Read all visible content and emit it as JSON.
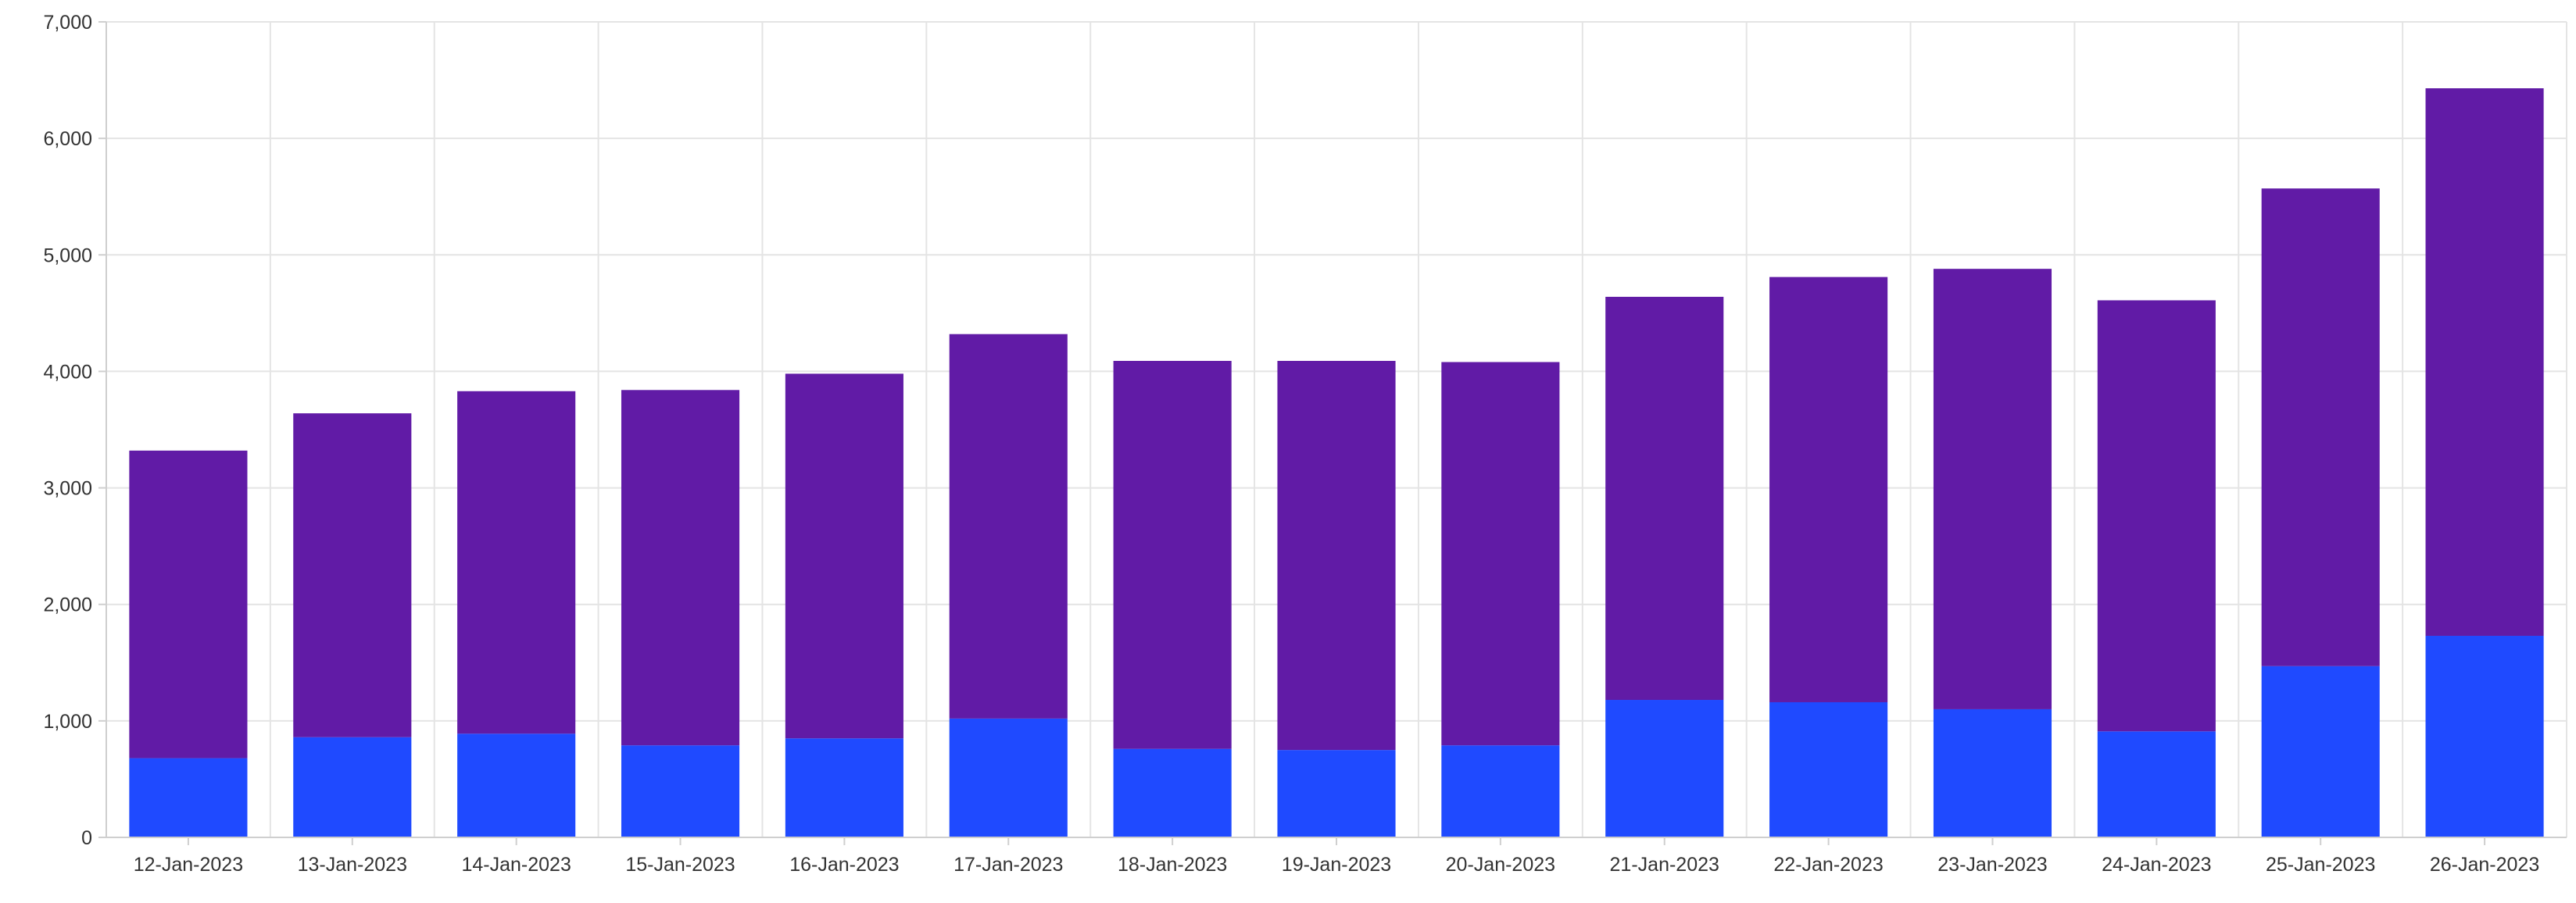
{
  "chart_data": {
    "type": "bar",
    "stacked": true,
    "categories": [
      "12-Jan-2023",
      "13-Jan-2023",
      "14-Jan-2023",
      "15-Jan-2023",
      "16-Jan-2023",
      "17-Jan-2023",
      "18-Jan-2023",
      "19-Jan-2023",
      "20-Jan-2023",
      "21-Jan-2023",
      "22-Jan-2023",
      "23-Jan-2023",
      "24-Jan-2023",
      "25-Jan-2023",
      "26-Jan-2023"
    ],
    "series": [
      {
        "color": "#1f4aff",
        "values": [
          680,
          860,
          890,
          790,
          850,
          1020,
          760,
          750,
          790,
          1180,
          1160,
          1100,
          910,
          1470,
          1730
        ]
      },
      {
        "color": "#611ba6",
        "values": [
          2640,
          2780,
          2940,
          3050,
          3130,
          3300,
          3330,
          3340,
          3290,
          3460,
          3650,
          3780,
          3700,
          4100,
          4700
        ]
      }
    ],
    "ylim": [
      0,
      7000
    ],
    "yticks": [
      "0",
      "1,000",
      "2,000",
      "3,000",
      "4,000",
      "5,000",
      "6,000",
      "7,000"
    ],
    "grid": true,
    "xlabel": "",
    "ylabel": ""
  }
}
